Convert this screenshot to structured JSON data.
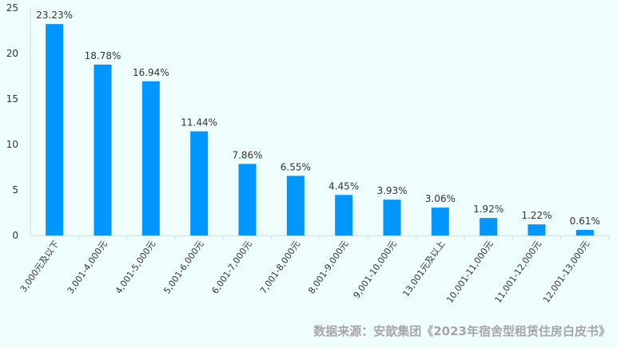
{
  "chart_data": {
    "type": "bar",
    "categories": [
      "3,000元及以下",
      "3,001-4,000元",
      "4,001-5,000元",
      "5,001-6,000元",
      "6,001-7,000元",
      "7,001-8,000元",
      "8,001-9,000元",
      "9,001-10,000元",
      "13,001元及以上",
      "10,001-11,000元",
      "11,001-12,000元",
      "12,001-13,000元"
    ],
    "values": [
      23.23,
      18.78,
      16.94,
      11.44,
      7.86,
      6.55,
      4.45,
      3.93,
      3.06,
      1.92,
      1.22,
      0.61
    ],
    "data_labels": [
      "23.23%",
      "18.78%",
      "16.94%",
      "11.44%",
      "7.86%",
      "6.55%",
      "4.45%",
      "3.93%",
      "3.06%",
      "1.92%",
      "1.22%",
      "0.61%"
    ],
    "y_ticks": [
      "0",
      "5",
      "10",
      "15",
      "20",
      "25"
    ],
    "ylim": [
      0,
      25
    ],
    "grid": false,
    "bar_color": "#0096ff",
    "axis_color": "#bfe3f0",
    "label_color": "#333333"
  },
  "source_text": "数据来源：安歆集团《2023年宿舍型租赁住房白皮书》",
  "source_color": "#a6a6a6"
}
